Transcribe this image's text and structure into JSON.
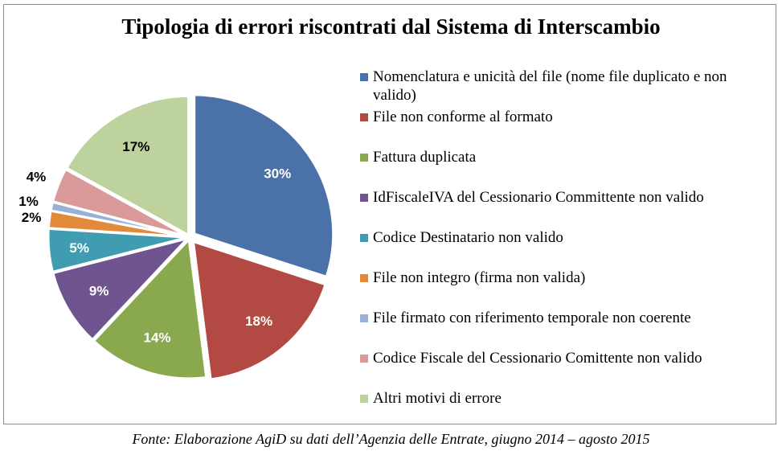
{
  "chart_data": {
    "type": "pie",
    "title": "Tipologia di errori riscontrati dal Sistema di Interscambio",
    "slices": [
      {
        "label": "Nomenclatura e unicità del file (nome file duplicato e non valido)",
        "value": 30,
        "display": "30%",
        "color": "#4a72a8",
        "text_color": "#ffffff"
      },
      {
        "label": "File non conforme al formato",
        "value": 18,
        "display": "18%",
        "color": "#b24a43",
        "text_color": "#ffffff"
      },
      {
        "label": "Fattura duplicata",
        "value": 14,
        "display": "14%",
        "color": "#8aa84e",
        "text_color": "#ffffff"
      },
      {
        "label": "IdFiscaleIVA del Cessionario Committente non valido",
        "value": 9,
        "display": "9%",
        "color": "#6f5490",
        "text_color": "#ffffff"
      },
      {
        "label": "Codice Destinatario non valido",
        "value": 5,
        "display": "5%",
        "color": "#3f9cb1",
        "text_color": "#ffffff"
      },
      {
        "label": "File non integro (firma non valida)",
        "value": 2,
        "display": "2%",
        "color": "#e08a3a",
        "text_color": "#000000"
      },
      {
        "label": "File firmato con riferimento temporale non coerente",
        "value": 1,
        "display": "1%",
        "color": "#98b1d6",
        "text_color": "#000000"
      },
      {
        "label": "Codice Fiscale del Cessionario Comittente non valido",
        "value": 4,
        "display": "4%",
        "color": "#d99a99",
        "text_color": "#000000"
      },
      {
        "label": "Altri motivi di errore",
        "value": 17,
        "display": "17%",
        "color": "#bdd29c",
        "text_color": "#000000"
      }
    ],
    "legend_position": "right"
  },
  "source": "Fonte: Elaborazione AgiD su dati dell’Agenzia delle Entrate, giugno 2014 – agosto 2015"
}
